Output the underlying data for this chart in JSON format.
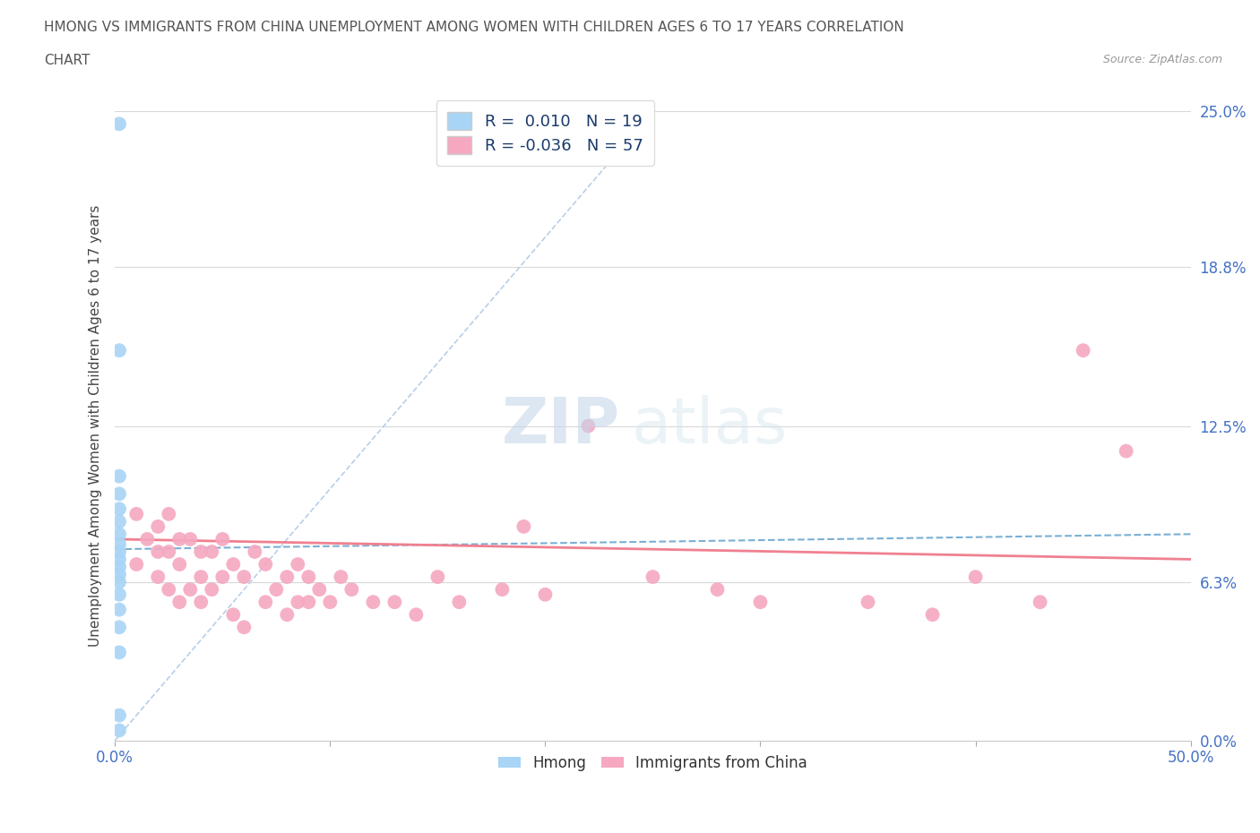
{
  "title_line1": "HMONG VS IMMIGRANTS FROM CHINA UNEMPLOYMENT AMONG WOMEN WITH CHILDREN AGES 6 TO 17 YEARS CORRELATION",
  "title_line2": "CHART",
  "source": "Source: ZipAtlas.com",
  "ylabel": "Unemployment Among Women with Children Ages 6 to 17 years",
  "xlim": [
    0.0,
    0.5
  ],
  "ylim": [
    0.0,
    0.25
  ],
  "ytick_vals": [
    0.0,
    0.063,
    0.125,
    0.188,
    0.25
  ],
  "ytick_labels": [
    "0.0%",
    "6.3%",
    "12.5%",
    "18.8%",
    "25.0%"
  ],
  "hmong_color": "#a8d4f5",
  "china_color": "#f5a8c0",
  "hmong_trend_color": "#7ab0d4",
  "china_trend_color": "#f08090",
  "diag_line_color": "#b8cfe8",
  "R_hmong": 0.01,
  "N_hmong": 19,
  "R_china": -0.036,
  "N_china": 57,
  "legend_label_hmong": "Hmong",
  "legend_label_china": "Immigrants from China",
  "watermark_1": "ZIP",
  "watermark_2": "atlas",
  "background_color": "#ffffff",
  "grid_color": "#d8d8d8",
  "hmong_x": [
    0.002,
    0.002,
    0.002,
    0.002,
    0.002,
    0.002,
    0.002,
    0.002,
    0.002,
    0.002,
    0.002,
    0.002,
    0.002,
    0.002,
    0.002,
    0.002,
    0.002,
    0.002,
    0.002
  ],
  "hmong_y": [
    0.245,
    0.155,
    0.105,
    0.098,
    0.092,
    0.087,
    0.082,
    0.078,
    0.075,
    0.072,
    0.069,
    0.066,
    0.063,
    0.058,
    0.052,
    0.045,
    0.035,
    0.01,
    0.004
  ],
  "china_x": [
    0.01,
    0.01,
    0.015,
    0.02,
    0.02,
    0.02,
    0.025,
    0.025,
    0.025,
    0.03,
    0.03,
    0.03,
    0.035,
    0.035,
    0.04,
    0.04,
    0.04,
    0.045,
    0.045,
    0.05,
    0.05,
    0.055,
    0.055,
    0.06,
    0.06,
    0.065,
    0.07,
    0.07,
    0.075,
    0.08,
    0.08,
    0.085,
    0.085,
    0.09,
    0.09,
    0.095,
    0.1,
    0.105,
    0.11,
    0.12,
    0.13,
    0.14,
    0.15,
    0.16,
    0.18,
    0.19,
    0.2,
    0.22,
    0.25,
    0.28,
    0.3,
    0.35,
    0.38,
    0.4,
    0.43,
    0.45,
    0.47
  ],
  "china_y": [
    0.07,
    0.09,
    0.08,
    0.065,
    0.075,
    0.085,
    0.06,
    0.075,
    0.09,
    0.055,
    0.07,
    0.08,
    0.06,
    0.08,
    0.055,
    0.065,
    0.075,
    0.06,
    0.075,
    0.065,
    0.08,
    0.05,
    0.07,
    0.045,
    0.065,
    0.075,
    0.055,
    0.07,
    0.06,
    0.05,
    0.065,
    0.055,
    0.07,
    0.055,
    0.065,
    0.06,
    0.055,
    0.065,
    0.06,
    0.055,
    0.055,
    0.05,
    0.065,
    0.055,
    0.06,
    0.085,
    0.058,
    0.125,
    0.065,
    0.06,
    0.055,
    0.055,
    0.05,
    0.065,
    0.055,
    0.155,
    0.115
  ],
  "hmong_trend_y_start": 0.076,
  "hmong_trend_y_end": 0.082,
  "china_trend_y_start": 0.08,
  "china_trend_y_end": 0.072
}
